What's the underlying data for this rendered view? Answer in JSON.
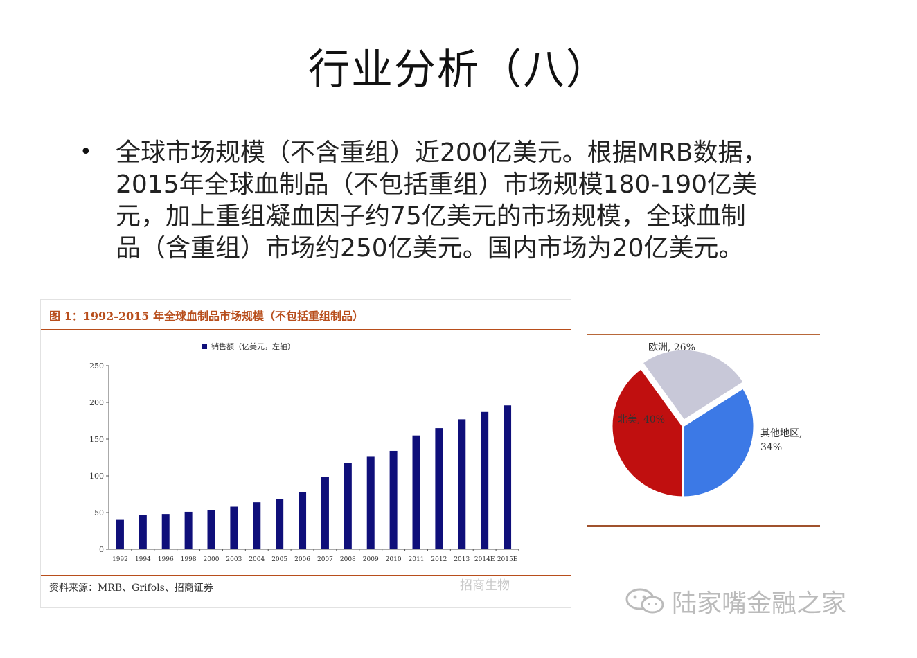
{
  "slide": {
    "title": "行业分析（八）",
    "bullet_lines": [
      "全球市场规模（不含重组）近200亿美元。根据MRB数据，",
      "2015年全球血制品（不包括重组）市场规模180-190亿美",
      "元，加上重组凝血因子约75亿美元的市场规模，全球血制",
      "品（含重组）市场约250亿美元。国内市场为20亿美元。"
    ],
    "bullet_icon": "bullet-dot-icon"
  },
  "bar_figure": {
    "title": "图 1：1992-2015 年全球血制品市场规模（不包括重组制品）",
    "source": "资料来源：MRB、Grifols、招商证券",
    "watermark": "招商生物"
  },
  "watermark": {
    "text": "陆家嘴金融之家",
    "icon": "wechat-icon"
  },
  "colors": {
    "bar": "#0f0f7a",
    "accent_rule": "#b84e1c",
    "pie_red": "#c00f0f",
    "pie_lavender": "#c8c8d8",
    "pie_blue": "#3c79e6"
  },
  "chart_data": [
    {
      "type": "bar",
      "legend": "销售额（亿美元，左轴）",
      "legend_placement": "top-center",
      "categories": [
        "1992",
        "1994",
        "1996",
        "1998",
        "2000",
        "2003",
        "2004",
        "2005",
        "2006",
        "2007",
        "2008",
        "2009",
        "2010",
        "2011",
        "2012",
        "2013",
        "2014E",
        "2015E"
      ],
      "series": [
        {
          "name": "销售额（亿美元，左轴）",
          "values": [
            40,
            47,
            48,
            51,
            53,
            58,
            64,
            68,
            78,
            99,
            117,
            126,
            134,
            155,
            165,
            177,
            187,
            196
          ]
        }
      ],
      "ylim": [
        0,
        250
      ],
      "yticks": [
        "0",
        "50",
        "100",
        "150",
        "200",
        "250"
      ],
      "grid": false
    },
    {
      "type": "pie",
      "slices": [
        {
          "label": "欧洲, 26%",
          "value": 26
        },
        {
          "label": "其他地区, 34%",
          "value": 34
        },
        {
          "label": "北美, 40%",
          "value": 40
        }
      ]
    }
  ]
}
